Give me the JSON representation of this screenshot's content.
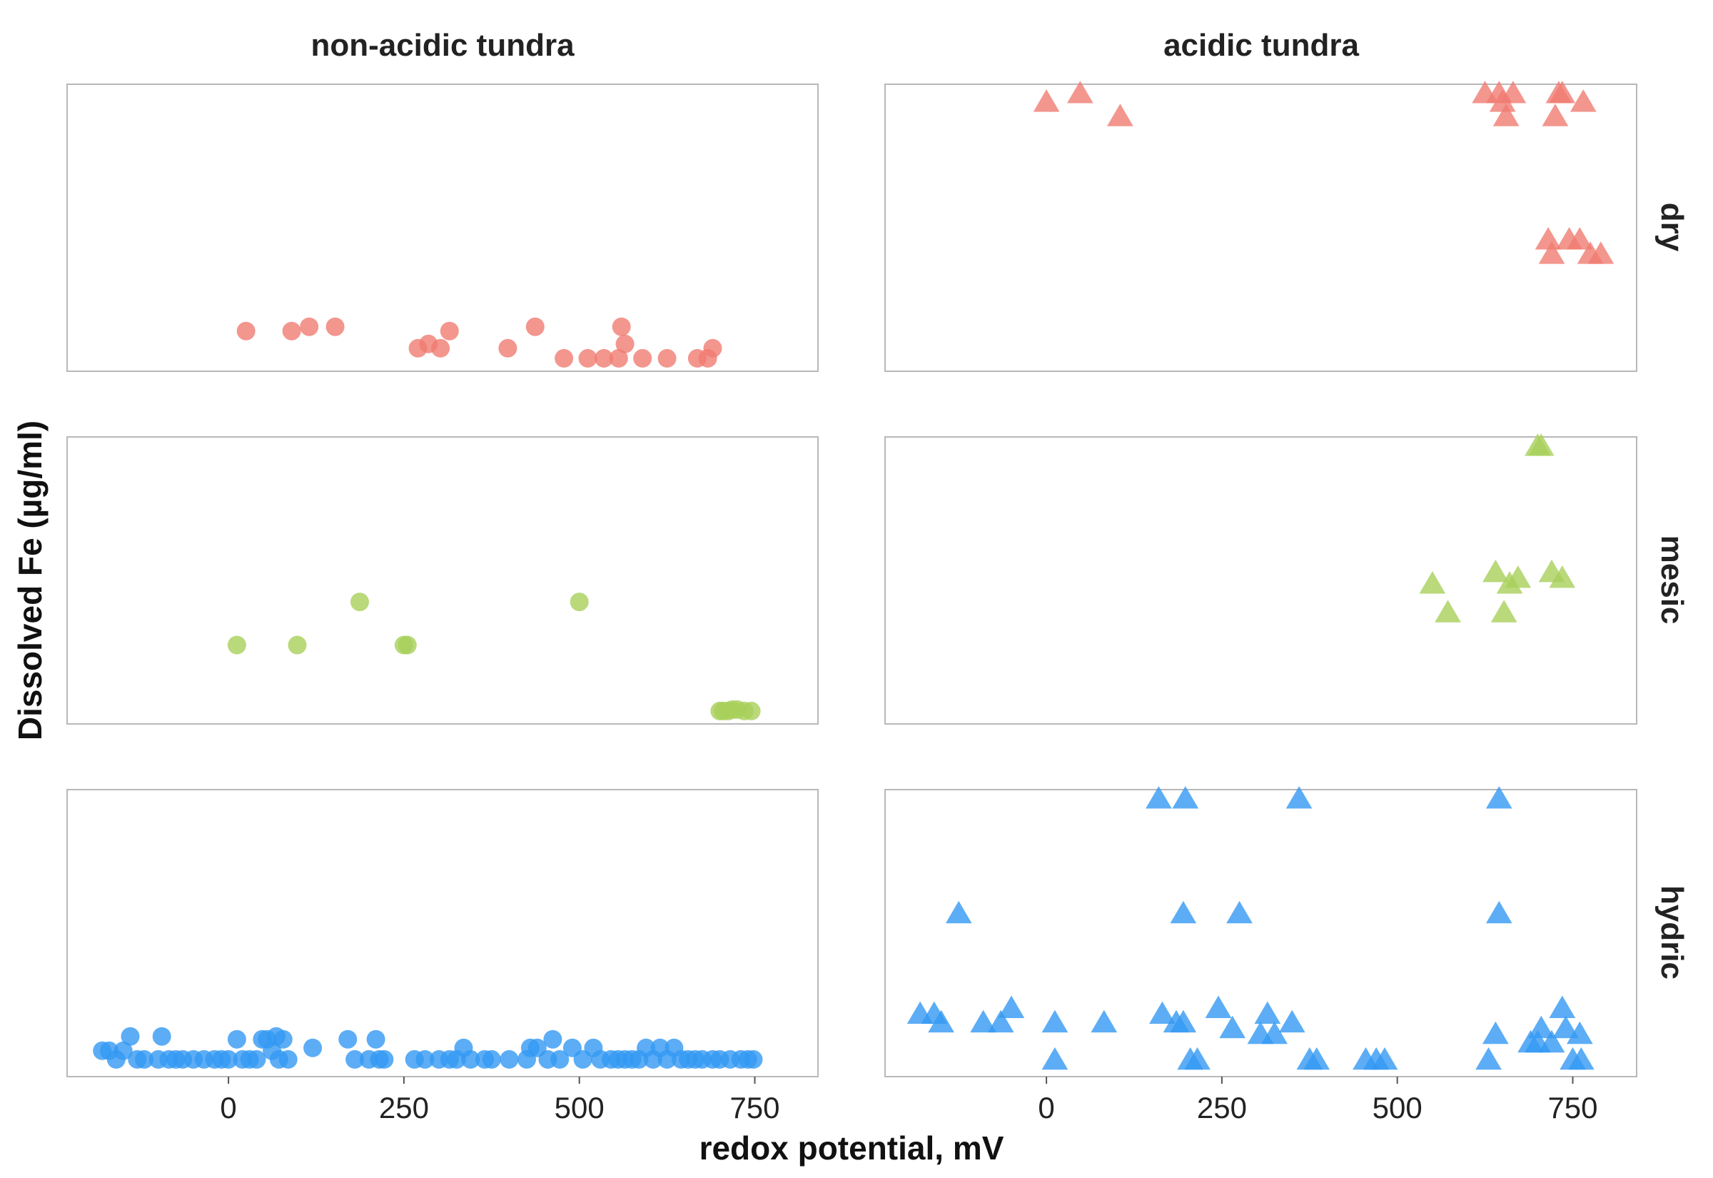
{
  "chart_data": {
    "type": "scatter",
    "facets": {
      "columns": [
        "non-acidic tundra",
        "acidic tundra"
      ],
      "rows": [
        "dry",
        "mesic",
        "hydric"
      ]
    },
    "xlabel": "redox potential, mV",
    "ylabel": "Dissolved Fe (µg/ml)",
    "x_ticks": [
      0,
      250,
      500,
      750
    ],
    "xlim": [
      -230,
      840
    ],
    "y_tick_labels_shown": false,
    "colors": {
      "dry": "#F07C72",
      "mesic": "#A8CF5A",
      "hydric": "#3399F3"
    },
    "markers": {
      "non-acidic tundra": "circle",
      "acidic tundra": "triangle"
    },
    "ylim_panel": [
      0,
      1
    ],
    "panels": [
      {
        "column": "non-acidic tundra",
        "row": "dry",
        "points": [
          [
            25,
            0.14
          ],
          [
            90,
            0.14
          ],
          [
            115,
            0.155
          ],
          [
            152,
            0.155
          ],
          [
            270,
            0.08
          ],
          [
            285,
            0.095
          ],
          [
            302,
            0.08
          ],
          [
            315,
            0.14
          ],
          [
            398,
            0.08
          ],
          [
            437,
            0.155
          ],
          [
            478,
            0.045
          ],
          [
            512,
            0.045
          ],
          [
            535,
            0.045
          ],
          [
            556,
            0.045
          ],
          [
            560,
            0.155
          ],
          [
            565,
            0.095
          ],
          [
            590,
            0.045
          ],
          [
            625,
            0.045
          ],
          [
            668,
            0.045
          ],
          [
            683,
            0.045
          ],
          [
            690,
            0.08
          ]
        ]
      },
      {
        "column": "acidic tundra",
        "row": "dry",
        "points": [
          [
            0,
            0.94
          ],
          [
            48,
            0.97
          ],
          [
            105,
            0.89
          ],
          [
            625,
            0.97
          ],
          [
            645,
            0.97
          ],
          [
            650,
            0.94
          ],
          [
            655,
            0.89
          ],
          [
            665,
            0.97
          ],
          [
            725,
            0.89
          ],
          [
            730,
            0.97
          ],
          [
            735,
            0.97
          ],
          [
            765,
            0.94
          ],
          [
            715,
            0.46
          ],
          [
            720,
            0.41
          ],
          [
            745,
            0.46
          ],
          [
            760,
            0.46
          ],
          [
            775,
            0.41
          ],
          [
            790,
            0.41
          ]
        ]
      },
      {
        "column": "non-acidic tundra",
        "row": "mesic",
        "points": [
          [
            12,
            0.275
          ],
          [
            98,
            0.275
          ],
          [
            187,
            0.425
          ],
          [
            250,
            0.275
          ],
          [
            255,
            0.275
          ],
          [
            500,
            0.425
          ],
          [
            700,
            0.045
          ],
          [
            705,
            0.045
          ],
          [
            712,
            0.045
          ],
          [
            718,
            0.05
          ],
          [
            725,
            0.05
          ],
          [
            735,
            0.045
          ],
          [
            745,
            0.045
          ]
        ]
      },
      {
        "column": "acidic tundra",
        "row": "mesic",
        "points": [
          [
            700,
            0.97
          ],
          [
            705,
            0.97
          ],
          [
            550,
            0.49
          ],
          [
            572,
            0.39
          ],
          [
            640,
            0.53
          ],
          [
            652,
            0.39
          ],
          [
            660,
            0.49
          ],
          [
            672,
            0.51
          ],
          [
            720,
            0.53
          ],
          [
            735,
            0.51
          ]
        ]
      },
      {
        "column": "non-acidic tundra",
        "row": "hydric",
        "points": [
          [
            -180,
            0.09
          ],
          [
            -170,
            0.09
          ],
          [
            -160,
            0.06
          ],
          [
            -150,
            0.09
          ],
          [
            -140,
            0.14
          ],
          [
            -130,
            0.06
          ],
          [
            -120,
            0.06
          ],
          [
            -100,
            0.06
          ],
          [
            -95,
            0.14
          ],
          [
            -85,
            0.06
          ],
          [
            -75,
            0.06
          ],
          [
            -65,
            0.06
          ],
          [
            -50,
            0.06
          ],
          [
            -35,
            0.06
          ],
          [
            -20,
            0.06
          ],
          [
            -10,
            0.06
          ],
          [
            0,
            0.06
          ],
          [
            12,
            0.13
          ],
          [
            20,
            0.06
          ],
          [
            30,
            0.06
          ],
          [
            40,
            0.06
          ],
          [
            48,
            0.13
          ],
          [
            55,
            0.13
          ],
          [
            62,
            0.09
          ],
          [
            68,
            0.14
          ],
          [
            72,
            0.06
          ],
          [
            78,
            0.13
          ],
          [
            85,
            0.06
          ],
          [
            120,
            0.1
          ],
          [
            170,
            0.13
          ],
          [
            180,
            0.06
          ],
          [
            200,
            0.06
          ],
          [
            210,
            0.13
          ],
          [
            215,
            0.06
          ],
          [
            222,
            0.06
          ],
          [
            265,
            0.06
          ],
          [
            280,
            0.06
          ],
          [
            300,
            0.06
          ],
          [
            315,
            0.06
          ],
          [
            325,
            0.06
          ],
          [
            335,
            0.1
          ],
          [
            345,
            0.06
          ],
          [
            365,
            0.06
          ],
          [
            375,
            0.06
          ],
          [
            400,
            0.06
          ],
          [
            425,
            0.06
          ],
          [
            430,
            0.1
          ],
          [
            440,
            0.1
          ],
          [
            455,
            0.06
          ],
          [
            462,
            0.13
          ],
          [
            472,
            0.06
          ],
          [
            490,
            0.1
          ],
          [
            505,
            0.06
          ],
          [
            520,
            0.1
          ],
          [
            530,
            0.06
          ],
          [
            545,
            0.06
          ],
          [
            555,
            0.06
          ],
          [
            565,
            0.06
          ],
          [
            575,
            0.06
          ],
          [
            585,
            0.06
          ],
          [
            595,
            0.1
          ],
          [
            605,
            0.06
          ],
          [
            615,
            0.1
          ],
          [
            625,
            0.06
          ],
          [
            635,
            0.1
          ],
          [
            645,
            0.06
          ],
          [
            655,
            0.06
          ],
          [
            665,
            0.06
          ],
          [
            675,
            0.06
          ],
          [
            690,
            0.06
          ],
          [
            700,
            0.06
          ],
          [
            715,
            0.06
          ],
          [
            730,
            0.06
          ],
          [
            740,
            0.06
          ],
          [
            748,
            0.06
          ]
        ]
      },
      {
        "column": "acidic tundra",
        "row": "hydric",
        "points": [
          [
            160,
            0.97
          ],
          [
            198,
            0.97
          ],
          [
            360,
            0.97
          ],
          [
            645,
            0.97
          ],
          [
            -125,
            0.57
          ],
          [
            195,
            0.57
          ],
          [
            275,
            0.57
          ],
          [
            645,
            0.57
          ],
          [
            -180,
            0.22
          ],
          [
            -160,
            0.22
          ],
          [
            -150,
            0.19
          ],
          [
            -90,
            0.19
          ],
          [
            -65,
            0.19
          ],
          [
            -50,
            0.24
          ],
          [
            12,
            0.19
          ],
          [
            82,
            0.19
          ],
          [
            165,
            0.22
          ],
          [
            185,
            0.19
          ],
          [
            195,
            0.19
          ],
          [
            205,
            0.06
          ],
          [
            215,
            0.06
          ],
          [
            245,
            0.24
          ],
          [
            265,
            0.17
          ],
          [
            305,
            0.15
          ],
          [
            315,
            0.22
          ],
          [
            325,
            0.15
          ],
          [
            350,
            0.19
          ],
          [
            375,
            0.06
          ],
          [
            385,
            0.06
          ],
          [
            455,
            0.06
          ],
          [
            470,
            0.06
          ],
          [
            482,
            0.06
          ],
          [
            12,
            0.06
          ],
          [
            630,
            0.06
          ],
          [
            640,
            0.15
          ],
          [
            690,
            0.12
          ],
          [
            700,
            0.12
          ],
          [
            705,
            0.17
          ],
          [
            735,
            0.24
          ],
          [
            740,
            0.17
          ],
          [
            720,
            0.12
          ],
          [
            760,
            0.15
          ],
          [
            750,
            0.06
          ],
          [
            762,
            0.06
          ]
        ]
      }
    ]
  }
}
